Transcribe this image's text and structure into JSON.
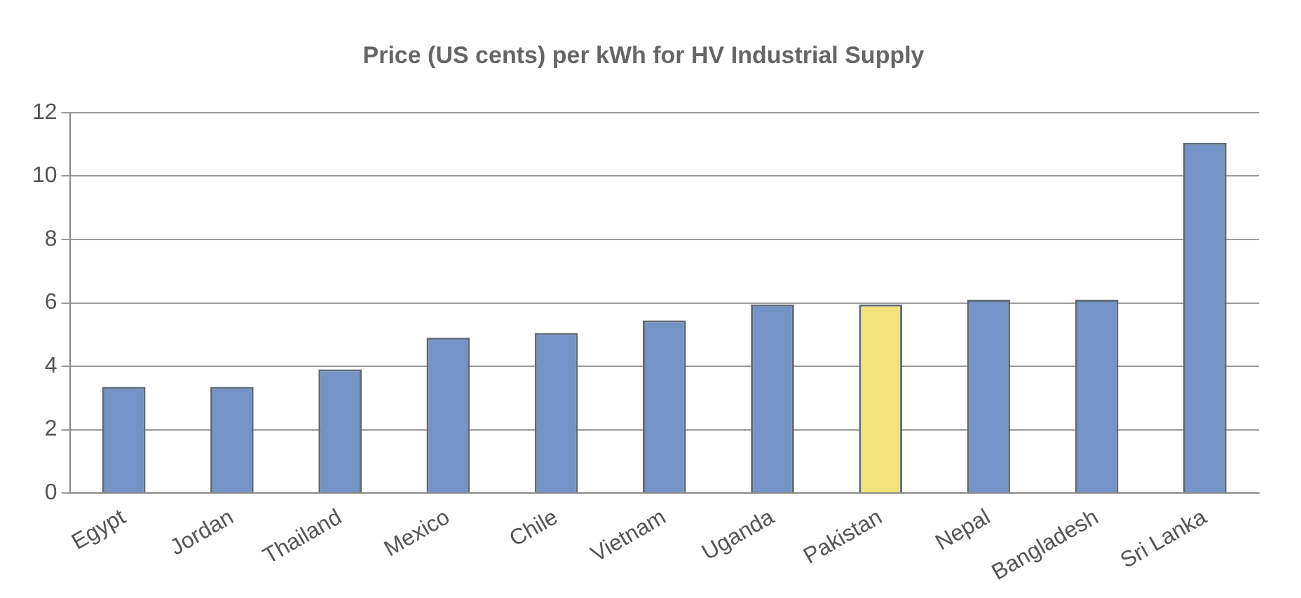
{
  "chart_data": {
    "type": "bar",
    "title": "Price (US cents) per kWh for HV Industrial Supply",
    "categories": [
      "Egypt",
      "Jordan",
      "Thailand",
      "Mexico",
      "Chile",
      "Vietnam",
      "Uganda",
      "Pakistan",
      "Nepal",
      "Bangladesh",
      "Sri Lanka"
    ],
    "values": [
      3.35,
      3.35,
      3.9,
      4.9,
      5.05,
      5.45,
      5.95,
      5.95,
      6.1,
      6.1,
      11.05
    ],
    "colors": [
      "#7493c6",
      "#7493c6",
      "#7493c6",
      "#7493c6",
      "#7493c6",
      "#7493c6",
      "#7493c6",
      "#f3e27c",
      "#7493c6",
      "#7493c6",
      "#7493c6"
    ],
    "ylim": [
      0,
      12
    ],
    "yticks": [
      0,
      2,
      4,
      6,
      8,
      10,
      12
    ],
    "grid": "y"
  }
}
